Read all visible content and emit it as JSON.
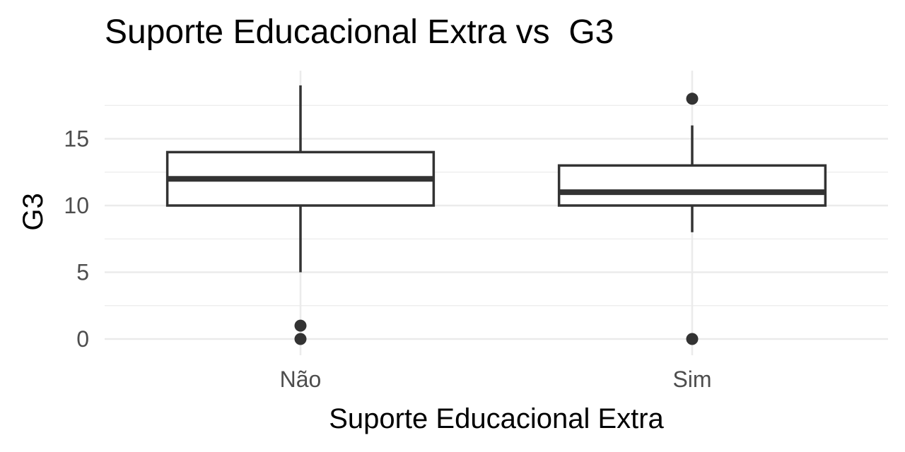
{
  "chart_data": {
    "type": "boxplot",
    "title": "Suporte Educacional Extra vs  G3",
    "xlabel": "Suporte Educacional Extra",
    "ylabel": "G3",
    "categories": [
      "Não",
      "Sim"
    ],
    "ylim": [
      -1.2,
      20
    ],
    "yticks": [
      0,
      5,
      10,
      15
    ],
    "grid": true,
    "boxes": [
      {
        "category": "Não",
        "whisker_low": 5,
        "q1": 10,
        "median": 12,
        "q3": 14,
        "whisker_high": 19,
        "outliers": [
          0,
          1
        ]
      },
      {
        "category": "Sim",
        "whisker_low": 8,
        "q1": 10,
        "median": 11,
        "q3": 13,
        "whisker_high": 16,
        "outliers": [
          0,
          18
        ]
      }
    ],
    "colors": {
      "box": "#333333",
      "grid": "#ebebeb",
      "tick_text": "#4d4d4d"
    }
  }
}
